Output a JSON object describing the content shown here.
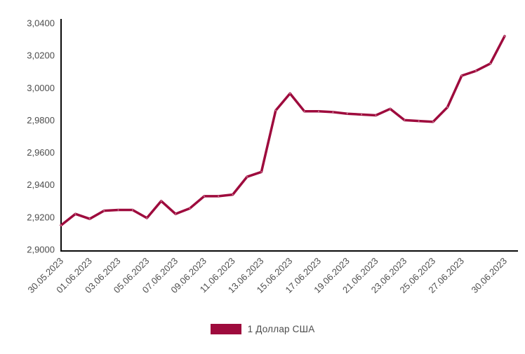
{
  "legend": {
    "label": "1 Доллар США",
    "swatch_color": "#9E0B3D"
  },
  "colors": {
    "axis": "#0a0a0a",
    "tick_text": "#4d4d4d",
    "background": "#ffffff",
    "line": "#9E0B3D"
  },
  "chart_data": {
    "type": "line",
    "title": "",
    "xlabel": "",
    "ylabel": "",
    "grid": false,
    "legend_position": "bottom-center",
    "ylim": [
      2.9,
      3.04
    ],
    "x": [
      "30.05.2023",
      "31.05.2023",
      "01.06.2023",
      "02.06.2023",
      "03.06.2023",
      "04.06.2023",
      "05.06.2023",
      "06.06.2023",
      "07.06.2023",
      "08.06.2023",
      "09.06.2023",
      "10.06.2023",
      "11.06.2023",
      "12.06.2023",
      "13.06.2023",
      "14.06.2023",
      "15.06.2023",
      "16.06.2023",
      "17.06.2023",
      "18.06.2023",
      "19.06.2023",
      "20.06.2023",
      "21.06.2023",
      "22.06.2023",
      "23.06.2023",
      "24.06.2023",
      "25.06.2023",
      "26.06.2023",
      "27.06.2023",
      "28.06.2023",
      "29.06.2023",
      "30.06.2023"
    ],
    "x_tick_indices": [
      0,
      2,
      4,
      6,
      8,
      10,
      12,
      14,
      16,
      18,
      20,
      22,
      24,
      26,
      28,
      31
    ],
    "y_ticks": [
      {
        "value": 3.04,
        "label": "3,0400"
      },
      {
        "value": 3.02,
        "label": "3,0200"
      },
      {
        "value": 3.0,
        "label": "3,0000"
      },
      {
        "value": 2.98,
        "label": "2,9800"
      },
      {
        "value": 2.96,
        "label": "2,9600"
      },
      {
        "value": 2.94,
        "label": "2,9400"
      },
      {
        "value": 2.92,
        "label": "2,9200"
      },
      {
        "value": 2.9,
        "label": "2,9000"
      }
    ],
    "series": [
      {
        "name": "1 Доллар США",
        "color": "#9E0B3D",
        "values": [
          2.915,
          2.922,
          2.919,
          2.924,
          2.9245,
          2.9245,
          2.9195,
          2.93,
          2.922,
          2.9255,
          2.933,
          2.933,
          2.934,
          2.945,
          2.948,
          2.986,
          2.9965,
          2.9855,
          2.9855,
          2.985,
          2.984,
          2.9835,
          2.983,
          2.987,
          2.98,
          2.9795,
          2.979,
          2.988,
          3.0075,
          3.0105,
          3.015,
          3.032
        ]
      }
    ]
  }
}
